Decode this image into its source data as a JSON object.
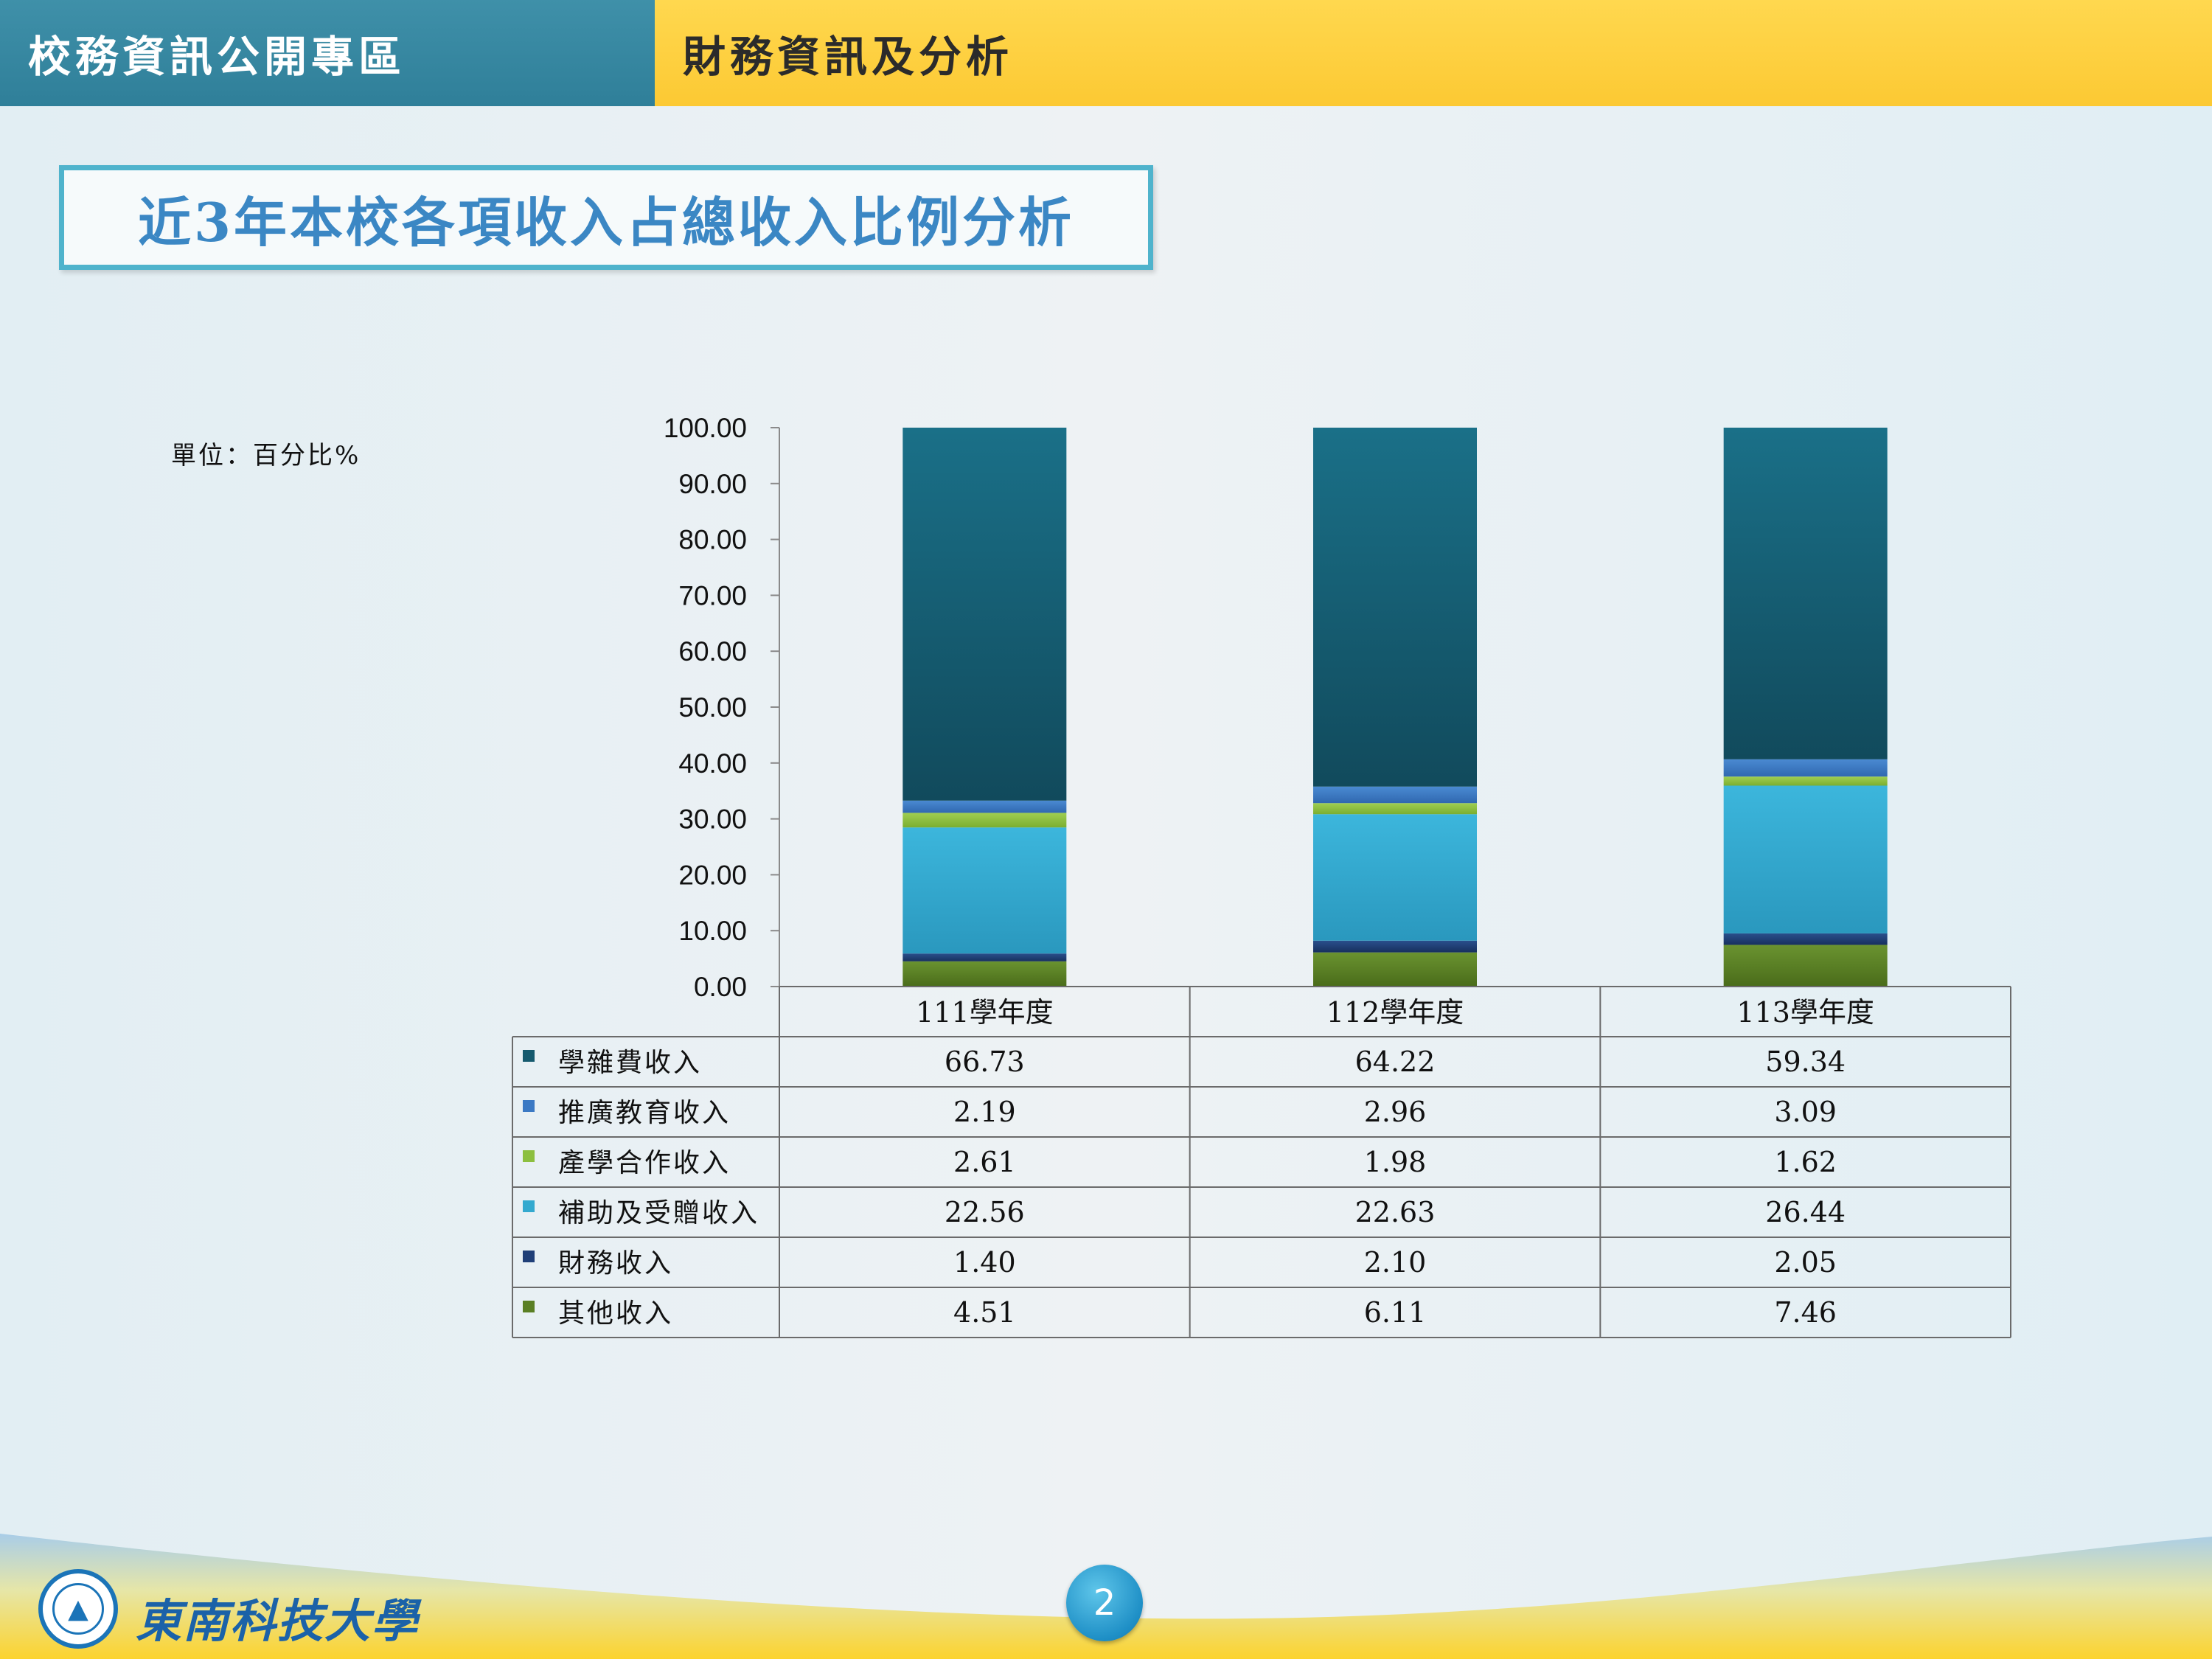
{
  "header": {
    "section_left": "校務資訊公開專區",
    "section_right": "財務資訊及分析"
  },
  "slide": {
    "title": "近3年本校各項收入占總收入比例分析",
    "unit": "單位：百分比%",
    "page_number": "2"
  },
  "footer": {
    "school_name": "東南科技大學"
  },
  "chart_data": {
    "type": "bar",
    "stacked": true,
    "title": "",
    "xlabel": "",
    "ylabel": "",
    "ylim": [
      0,
      100
    ],
    "y_ticks": [
      "0.00",
      "10.00",
      "20.00",
      "30.00",
      "40.00",
      "50.00",
      "60.00",
      "70.00",
      "80.00",
      "90.00",
      "100.00"
    ],
    "categories": [
      "111學年度",
      "112學年度",
      "113學年度"
    ],
    "series": [
      {
        "name": "學雜費收入",
        "values": [
          66.73,
          64.22,
          59.34
        ],
        "labels": [
          "66.73",
          "64.22",
          "59.34"
        ],
        "color": "#155a6e"
      },
      {
        "name": "推廣教育收入",
        "values": [
          2.19,
          2.96,
          3.09
        ],
        "labels": [
          "2.19",
          "2.96",
          "3.09"
        ],
        "color": "#3b79c4"
      },
      {
        "name": "產學合作收入",
        "values": [
          2.61,
          1.98,
          1.62
        ],
        "labels": [
          "2.61",
          "1.98",
          "1.62"
        ],
        "color": "#8cbf3f"
      },
      {
        "name": "補助及受贈收入",
        "values": [
          22.56,
          22.63,
          26.44
        ],
        "labels": [
          "22.56",
          "22.63",
          "26.44"
        ],
        "color": "#33a9cf"
      },
      {
        "name": "財務收入",
        "values": [
          1.4,
          2.1,
          2.05
        ],
        "labels": [
          "1.40",
          "2.10",
          "2.05"
        ],
        "color": "#1f3f78"
      },
      {
        "name": "其他收入",
        "values": [
          4.51,
          6.11,
          7.46
        ],
        "labels": [
          "4.51",
          "6.11",
          "7.46"
        ],
        "color": "#5a7f24"
      }
    ],
    "legend": "data-table-below",
    "grid": false
  },
  "colors": {
    "header_left": "#3287a0",
    "header_right": "#fdcf3d",
    "title_border": "#4fb3cc",
    "title_text": "#3b87c4"
  }
}
